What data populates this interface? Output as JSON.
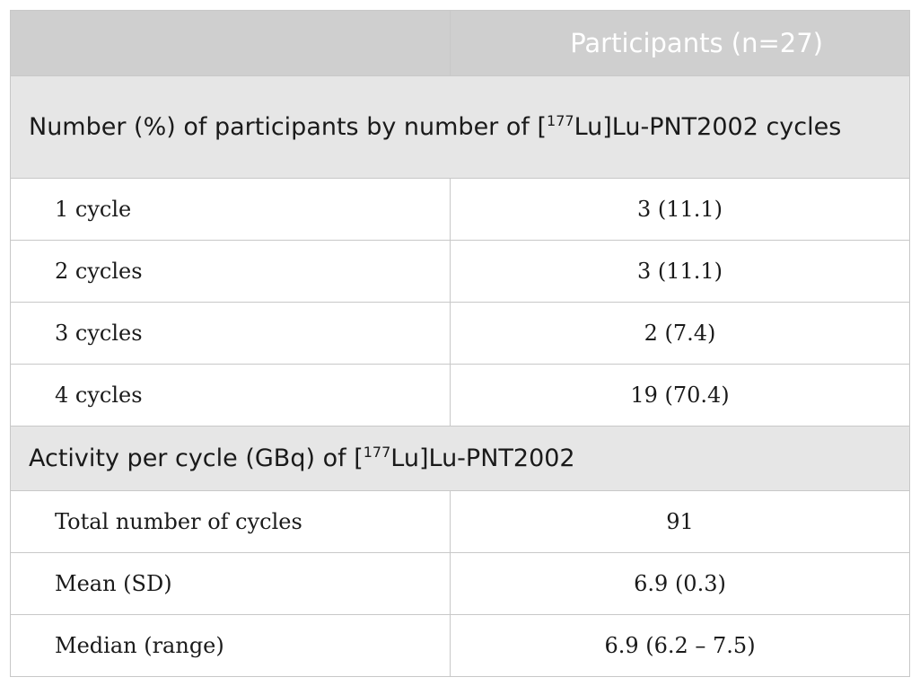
{
  "header": {
    "col1": "",
    "col2": "Participants (n=27)"
  },
  "sections": [
    {
      "title_pre": "Number (%) of participants by number of [",
      "title_sup": "177",
      "title_post": "Lu]Lu-PNT2002 cycles",
      "rows": [
        {
          "label": "1 cycle",
          "value": "3 (11.1)"
        },
        {
          "label": "2 cycles",
          "value": "3 (11.1)"
        },
        {
          "label": "3 cycles",
          "value": "2 (7.4)"
        },
        {
          "label": "4 cycles",
          "value": "19 (70.4)"
        }
      ]
    },
    {
      "title_pre": "Activity per cycle (GBq) of [",
      "title_sup": "177",
      "title_post": "Lu]Lu-PNT2002",
      "rows": [
        {
          "label": "Total number of cycles",
          "value": "91"
        },
        {
          "label": "Mean (SD)",
          "value": "6.9 (0.3)"
        },
        {
          "label": "Median (range)",
          "value": "6.9 (6.2 – 7.5)"
        }
      ]
    }
  ]
}
